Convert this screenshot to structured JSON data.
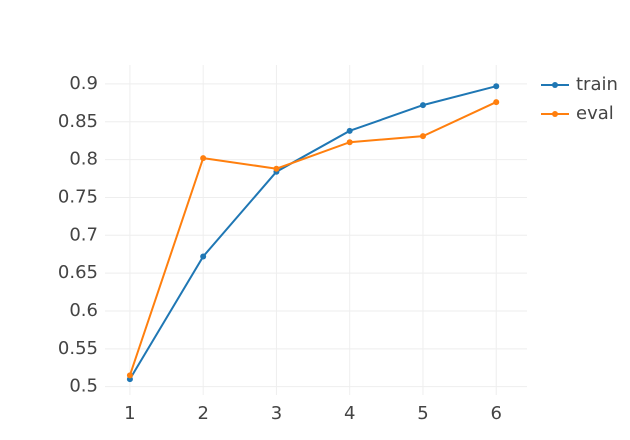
{
  "chart_data": {
    "type": "line",
    "x": [
      1,
      2,
      3,
      4,
      5,
      6
    ],
    "series": [
      {
        "name": "train",
        "color": "#1f77b4",
        "values": [
          0.51,
          0.672,
          0.784,
          0.838,
          0.872,
          0.897
        ]
      },
      {
        "name": "eval",
        "color": "#ff7f0e",
        "values": [
          0.515,
          0.802,
          0.788,
          0.823,
          0.831,
          0.876
        ]
      }
    ],
    "xlim": [
      0.66,
      6.42
    ],
    "xticks": [
      1,
      2,
      3,
      4,
      5,
      6
    ],
    "ylim": [
      0.489,
      0.925
    ],
    "yticks": [
      0.5,
      0.55,
      0.6,
      0.65,
      0.7,
      0.75,
      0.8,
      0.85,
      0.9
    ],
    "grid": true,
    "legend": "top-right"
  }
}
